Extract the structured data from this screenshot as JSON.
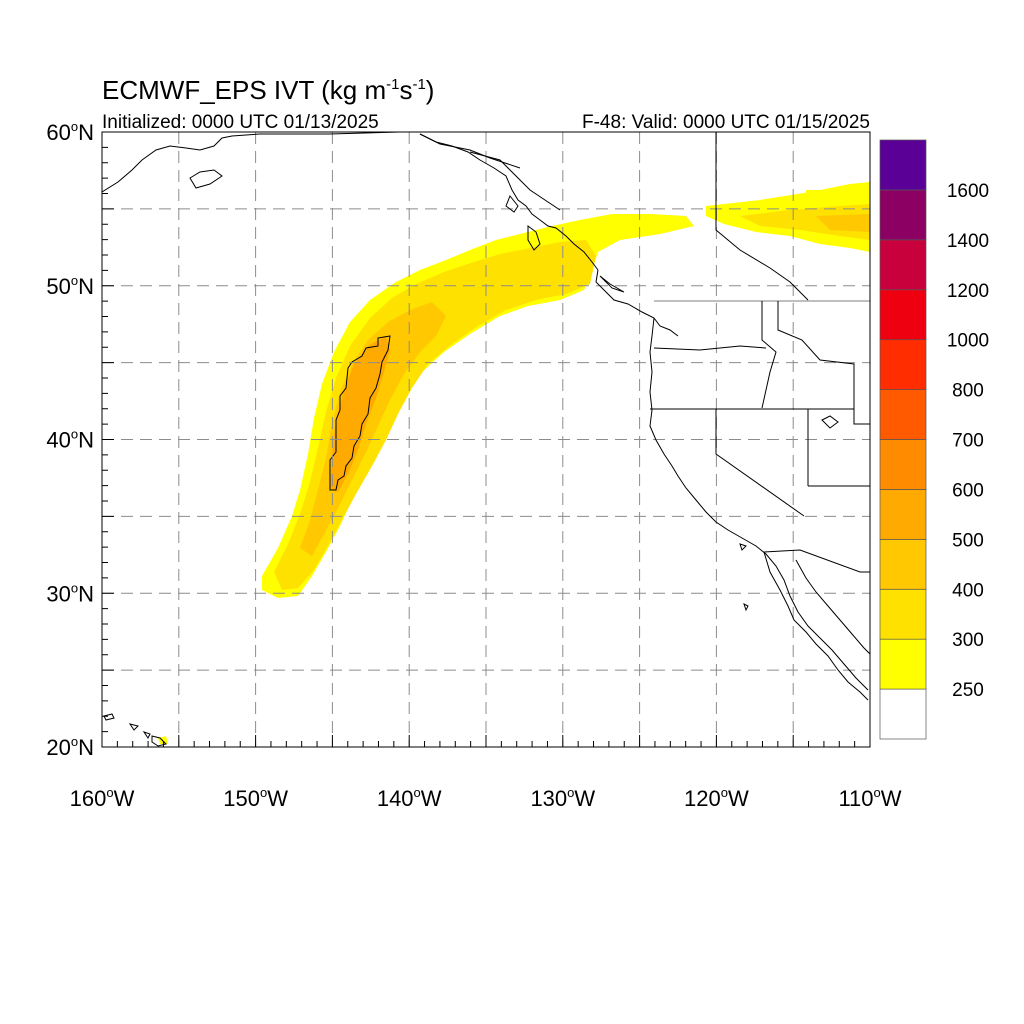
{
  "title": {
    "main": "ECMWF_EPS IVT (kg m",
    "exp1": "-1",
    "mid": "s",
    "exp2": "-1",
    "end": ")"
  },
  "subtitle_left": "Initialized: 0000 UTC 01/13/2025",
  "subtitle_right": "F-48: Valid: 0000 UTC 01/15/2025",
  "map": {
    "lon_range": [
      -160,
      -110
    ],
    "lat_range": [
      20,
      60
    ],
    "lon_ticks": [
      {
        "deg": "160",
        "hemi": "W",
        "value": -160
      },
      {
        "deg": "150",
        "hemi": "W",
        "value": -150
      },
      {
        "deg": "140",
        "hemi": "W",
        "value": -140
      },
      {
        "deg": "130",
        "hemi": "W",
        "value": -130
      },
      {
        "deg": "120",
        "hemi": "W",
        "value": -120
      },
      {
        "deg": "110",
        "hemi": "W",
        "value": -110
      }
    ],
    "lat_ticks": [
      {
        "deg": "60",
        "hemi": "N",
        "value": 60
      },
      {
        "deg": "50",
        "hemi": "N",
        "value": 50
      },
      {
        "deg": "40",
        "hemi": "N",
        "value": 40
      },
      {
        "deg": "30",
        "hemi": "N",
        "value": 30
      },
      {
        "deg": "20",
        "hemi": "N",
        "value": 20
      }
    ],
    "gridlines": "dashed gray every 5 degrees",
    "field": "Integrated Vapor Transport"
  },
  "colorbar": {
    "labels": [
      "250",
      "300",
      "400",
      "500",
      "600",
      "700",
      "800",
      "1000",
      "1200",
      "1400",
      "1600"
    ],
    "colors": [
      "#ffffff",
      "#ffff00",
      "#ffe100",
      "#ffc800",
      "#ffaa00",
      "#ff8c00",
      "#ff5a00",
      "#ff2d00",
      "#ee0010",
      "#c8003c",
      "#8c0064",
      "#5a0096"
    ]
  }
}
